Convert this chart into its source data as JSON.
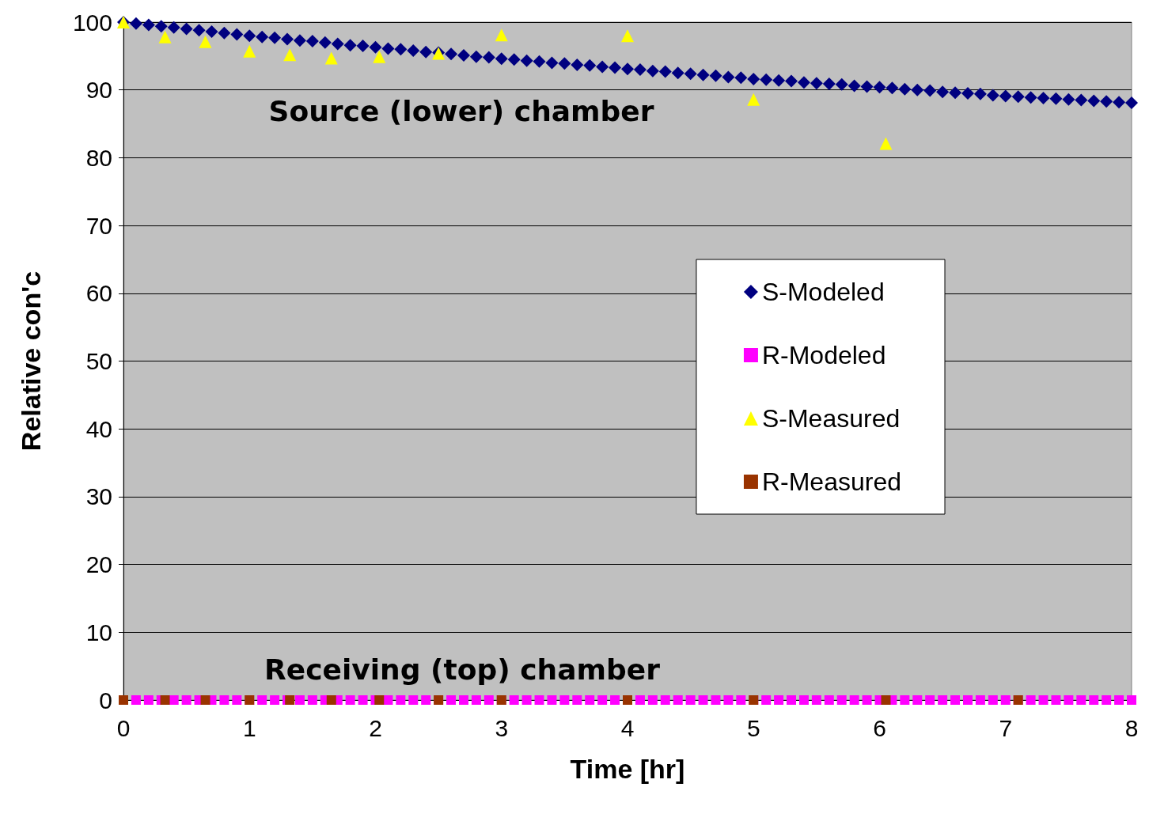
{
  "chart_data": {
    "type": "scatter",
    "xlabel": "Time [hr]",
    "ylabel": "Relative con'c",
    "xlim": [
      0,
      8
    ],
    "xticks": [
      0,
      1,
      2,
      3,
      4,
      5,
      6,
      7,
      8
    ],
    "ylim": [
      0,
      100
    ],
    "yticks": [
      0,
      10,
      20,
      30,
      40,
      50,
      60,
      70,
      80,
      90,
      100
    ],
    "grid": "y",
    "legend": "right",
    "annotations": [
      "Source (lower) chamber",
      "Receiving (top) chamber"
    ],
    "series": [
      {
        "name": "S-Modeled",
        "color": "#000080",
        "marker": "diamond",
        "x": [
          0,
          0.1,
          0.2,
          0.3,
          0.4,
          0.5,
          0.6,
          0.7,
          0.8,
          0.9,
          1,
          1.1,
          1.2,
          1.3,
          1.4,
          1.5,
          1.6,
          1.7,
          1.8,
          1.9,
          2,
          2.1,
          2.2,
          2.3,
          2.4,
          2.5,
          2.6,
          2.7,
          2.8,
          2.9,
          3,
          3.1,
          3.2,
          3.3,
          3.4,
          3.5,
          3.6,
          3.7,
          3.8,
          3.9,
          4,
          4.1,
          4.2,
          4.3,
          4.4,
          4.5,
          4.6,
          4.7,
          4.8,
          4.9,
          5,
          5.1,
          5.2,
          5.3,
          5.4,
          5.5,
          5.6,
          5.7,
          5.8,
          5.9,
          6,
          6.1,
          6.2,
          6.3,
          6.4,
          6.5,
          6.6,
          6.7,
          6.8,
          6.9,
          7,
          7.1,
          7.2,
          7.3,
          7.4,
          7.5,
          7.6,
          7.7,
          7.8,
          7.9,
          8
        ],
        "values": [
          100,
          99.8,
          99.6,
          99.4,
          99.2,
          99.0,
          98.8,
          98.6,
          98.4,
          98.2,
          98.0,
          97.8,
          97.7,
          97.5,
          97.3,
          97.2,
          97.0,
          96.8,
          96.6,
          96.5,
          96.3,
          96.1,
          96.0,
          95.8,
          95.6,
          95.5,
          95.3,
          95.1,
          94.9,
          94.8,
          94.6,
          94.5,
          94.3,
          94.2,
          94.0,
          93.9,
          93.7,
          93.6,
          93.4,
          93.3,
          93.1,
          93.0,
          92.8,
          92.7,
          92.5,
          92.4,
          92.2,
          92.1,
          91.9,
          91.8,
          91.6,
          91.5,
          91.4,
          91.3,
          91.1,
          91.0,
          90.9,
          90.8,
          90.6,
          90.5,
          90.4,
          90.3,
          90.1,
          90.0,
          89.9,
          89.7,
          89.6,
          89.5,
          89.4,
          89.2,
          89.1,
          89.0,
          88.9,
          88.8,
          88.7,
          88.6,
          88.5,
          88.4,
          88.3,
          88.2,
          88.1
        ]
      },
      {
        "name": "R-Modeled",
        "color": "#ff00ff",
        "marker": "square",
        "x": [
          0.1,
          0.2,
          0.3,
          0.4,
          0.5,
          0.6,
          0.7,
          0.8,
          0.9,
          1,
          1.1,
          1.2,
          1.3,
          1.4,
          1.5,
          1.6,
          1.7,
          1.8,
          1.9,
          2,
          2.1,
          2.2,
          2.3,
          2.4,
          2.5,
          2.6,
          2.7,
          2.8,
          2.9,
          3,
          3.1,
          3.2,
          3.3,
          3.4,
          3.5,
          3.6,
          3.7,
          3.8,
          3.9,
          4.1,
          4.2,
          4.3,
          4.4,
          4.5,
          4.6,
          4.7,
          4.8,
          4.9,
          5,
          5.1,
          5.2,
          5.3,
          5.4,
          5.5,
          5.6,
          5.7,
          5.8,
          5.9,
          6,
          6.1,
          6.2,
          6.3,
          6.4,
          6.5,
          6.6,
          6.7,
          6.8,
          6.9,
          7,
          7.1,
          7.2,
          7.3,
          7.4,
          7.5,
          7.6,
          7.7,
          7.8,
          7.9,
          8
        ],
        "values": [
          0,
          0,
          0,
          0,
          0,
          0,
          0,
          0,
          0,
          0,
          0,
          0,
          0,
          0,
          0,
          0,
          0,
          0,
          0,
          0,
          0,
          0,
          0,
          0,
          0,
          0,
          0,
          0,
          0,
          0,
          0,
          0,
          0,
          0,
          0,
          0,
          0,
          0,
          0,
          0,
          0,
          0,
          0,
          0,
          0,
          0,
          0,
          0,
          0,
          0,
          0,
          0,
          0,
          0,
          0,
          0,
          0,
          0,
          0,
          0,
          0,
          0,
          0,
          0,
          0,
          0,
          0,
          0,
          0,
          0,
          0,
          0,
          0,
          0,
          0,
          0,
          0,
          0,
          0
        ]
      },
      {
        "name": "S-Measured",
        "color": "#ffff00",
        "marker": "triangle",
        "x": [
          0,
          0.33,
          0.65,
          1.0,
          1.32,
          1.65,
          2.03,
          2.5,
          3.0,
          4.0,
          5.0,
          6.05
        ],
        "values": [
          100,
          97.8,
          97.1,
          95.7,
          95.2,
          94.7,
          94.9,
          95.4,
          98.1,
          98.0,
          88.6,
          82.1
        ]
      },
      {
        "name": "R-Measured",
        "color": "#993300",
        "marker": "square",
        "x": [
          0,
          0.33,
          0.65,
          1.0,
          1.32,
          1.65,
          2.03,
          2.5,
          3.0,
          4.0,
          5.0,
          6.05,
          7.1
        ],
        "values": [
          0,
          0,
          0,
          0,
          0,
          0,
          0,
          0,
          0,
          0,
          0,
          0,
          0
        ]
      }
    ]
  }
}
